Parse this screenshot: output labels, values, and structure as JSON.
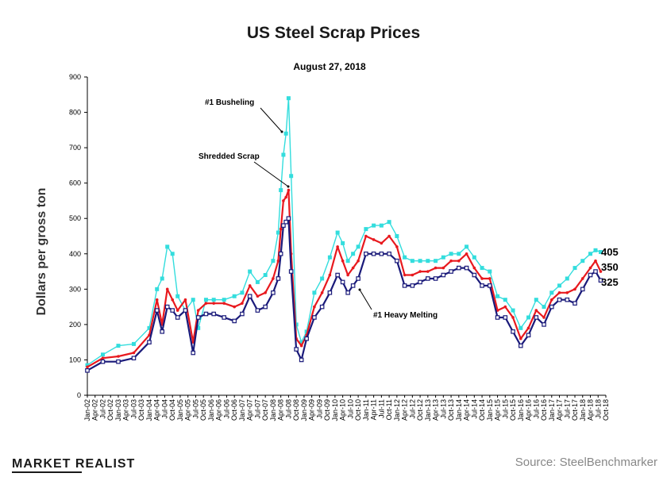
{
  "chart_data": {
    "type": "line",
    "title": "US Steel Scrap Prices",
    "subtitle": "August 27, 2018",
    "ylabel": "Dollars per gross ton",
    "ylim": [
      0,
      900
    ],
    "yticks": [
      0,
      100,
      200,
      300,
      400,
      500,
      600,
      700,
      800,
      900
    ],
    "xticks": [
      "Jan-02",
      "Apr-02",
      "Jul-02",
      "Oct-02",
      "Jan-03",
      "Apr-03",
      "Jul-03",
      "Oct-03",
      "Jan-04",
      "Apr-04",
      "Jul-04",
      "Oct-04",
      "Jan-05",
      "Apr-05",
      "Jul-05",
      "Oct-05",
      "Jan-06",
      "Apr-06",
      "Jul-06",
      "Oct-06",
      "Jan-07",
      "Apr-07",
      "Jul-07",
      "Oct-07",
      "Jan-08",
      "Apr-08",
      "Jul-08",
      "Oct-08",
      "Jan-09",
      "Apr-09",
      "Jul-09",
      "Oct-09",
      "Jan-10",
      "Apr-10",
      "Jul-10",
      "Oct-10",
      "Jan-11",
      "Apr-11",
      "Jul-11",
      "Oct-11",
      "Jan-12",
      "Apr-12",
      "Jul-12",
      "Oct-12",
      "Jan-13",
      "Apr-13",
      "Jul-13",
      "Oct-13",
      "Jan-14",
      "Apr-14",
      "Jul-14",
      "Oct-14",
      "Jan-15",
      "Apr-15",
      "Jul-15",
      "Oct-15",
      "Jan-16",
      "Apr-16",
      "Jul-16",
      "Oct-16",
      "Jan-17",
      "Apr-17",
      "Jul-17",
      "Oct-17",
      "Jan-18",
      "Apr-18",
      "Jul-18",
      "Oct-18"
    ],
    "series": [
      {
        "name": "#1 Busheling",
        "color": "#33dddd",
        "x": [
          "Jan-02",
          "Jul-02",
          "Jan-03",
          "Jul-03",
          "Jan-04",
          "Apr-04",
          "Jun-04",
          "Aug-04",
          "Oct-04",
          "Dec-04",
          "Mar-05",
          "Jun-05",
          "Aug-05",
          "Nov-05",
          "Feb-06",
          "Jun-06",
          "Oct-06",
          "Jan-07",
          "Apr-07",
          "Jul-07",
          "Oct-07",
          "Jan-08",
          "Mar-08",
          "Apr-08",
          "May-08",
          "Jun-08",
          "Jul-08",
          "Aug-08",
          "Oct-08",
          "Dec-08",
          "Feb-09",
          "May-09",
          "Aug-09",
          "Nov-09",
          "Feb-10",
          "Apr-10",
          "Jun-10",
          "Aug-10",
          "Oct-10",
          "Jan-11",
          "Apr-11",
          "Jul-11",
          "Oct-11",
          "Jan-12",
          "Apr-12",
          "Jul-12",
          "Oct-12",
          "Jan-13",
          "Apr-13",
          "Jul-13",
          "Oct-13",
          "Jan-14",
          "Apr-14",
          "Jul-14",
          "Oct-14",
          "Jan-15",
          "Apr-15",
          "Jul-15",
          "Oct-15",
          "Jan-16",
          "Apr-16",
          "Jul-16",
          "Oct-16",
          "Jan-17",
          "Apr-17",
          "Jul-17",
          "Oct-17",
          "Jan-18",
          "Apr-18",
          "Jun-18",
          "Aug-18"
        ],
        "values": [
          85,
          115,
          140,
          145,
          190,
          300,
          330,
          420,
          400,
          280,
          240,
          270,
          190,
          270,
          270,
          270,
          280,
          290,
          350,
          320,
          340,
          380,
          460,
          580,
          680,
          740,
          840,
          620,
          200,
          150,
          180,
          290,
          330,
          390,
          460,
          430,
          380,
          400,
          420,
          470,
          480,
          480,
          490,
          450,
          390,
          380,
          380,
          380,
          380,
          390,
          400,
          400,
          420,
          390,
          360,
          350,
          280,
          270,
          240,
          190,
          220,
          270,
          250,
          290,
          310,
          330,
          360,
          380,
          400,
          410,
          405
        ]
      },
      {
        "name": "Shredded Scrap",
        "color": "#e8191e",
        "x": [
          "Jan-02",
          "Jul-02",
          "Jan-03",
          "Jul-03",
          "Jan-04",
          "Apr-04",
          "Jun-04",
          "Aug-04",
          "Oct-04",
          "Dec-04",
          "Mar-05",
          "Jun-05",
          "Aug-05",
          "Nov-05",
          "Feb-06",
          "Jun-06",
          "Oct-06",
          "Jan-07",
          "Apr-07",
          "Jul-07",
          "Oct-07",
          "Jan-08",
          "Mar-08",
          "Apr-08",
          "May-08",
          "Jun-08",
          "Jul-08",
          "Aug-08",
          "Oct-08",
          "Dec-08",
          "Feb-09",
          "May-09",
          "Aug-09",
          "Nov-09",
          "Feb-10",
          "Apr-10",
          "Jun-10",
          "Aug-10",
          "Oct-10",
          "Jan-11",
          "Apr-11",
          "Jul-11",
          "Oct-11",
          "Jan-12",
          "Apr-12",
          "Jul-12",
          "Oct-12",
          "Jan-13",
          "Apr-13",
          "Jul-13",
          "Oct-13",
          "Jan-14",
          "Apr-14",
          "Jul-14",
          "Oct-14",
          "Jan-15",
          "Apr-15",
          "Jul-15",
          "Oct-15",
          "Jan-16",
          "Apr-16",
          "Jul-16",
          "Oct-16",
          "Jan-17",
          "Apr-17",
          "Jul-17",
          "Oct-17",
          "Jan-18",
          "Apr-18",
          "Jun-18",
          "Aug-18"
        ],
        "values": [
          80,
          105,
          110,
          120,
          170,
          270,
          200,
          300,
          270,
          240,
          270,
          150,
          240,
          260,
          260,
          260,
          250,
          260,
          310,
          280,
          290,
          330,
          380,
          470,
          550,
          560,
          580,
          400,
          160,
          140,
          170,
          250,
          290,
          340,
          420,
          380,
          340,
          360,
          380,
          450,
          440,
          430,
          450,
          420,
          340,
          340,
          350,
          350,
          360,
          360,
          380,
          380,
          400,
          360,
          330,
          330,
          240,
          250,
          220,
          160,
          190,
          240,
          220,
          270,
          290,
          290,
          300,
          330,
          360,
          380,
          350
        ]
      },
      {
        "name": "#1 Heavy Melting",
        "color": "#1a1a7a",
        "x": [
          "Jan-02",
          "Jul-02",
          "Jan-03",
          "Jul-03",
          "Jan-04",
          "Apr-04",
          "Jun-04",
          "Aug-04",
          "Oct-04",
          "Dec-04",
          "Mar-05",
          "Jun-05",
          "Aug-05",
          "Nov-05",
          "Feb-06",
          "Jun-06",
          "Oct-06",
          "Jan-07",
          "Apr-07",
          "Jul-07",
          "Oct-07",
          "Jan-08",
          "Mar-08",
          "Apr-08",
          "May-08",
          "Jun-08",
          "Jul-08",
          "Aug-08",
          "Oct-08",
          "Dec-08",
          "Feb-09",
          "May-09",
          "Aug-09",
          "Nov-09",
          "Feb-10",
          "Apr-10",
          "Jun-10",
          "Aug-10",
          "Oct-10",
          "Jan-11",
          "Apr-11",
          "Jul-11",
          "Oct-11",
          "Jan-12",
          "Apr-12",
          "Jul-12",
          "Oct-12",
          "Jan-13",
          "Apr-13",
          "Jul-13",
          "Oct-13",
          "Jan-14",
          "Apr-14",
          "Jul-14",
          "Oct-14",
          "Jan-15",
          "Apr-15",
          "Jul-15",
          "Oct-15",
          "Jan-16",
          "Apr-16",
          "Jul-16",
          "Oct-16",
          "Jan-17",
          "Apr-17",
          "Jul-17",
          "Oct-17",
          "Jan-18",
          "Apr-18",
          "Jun-18",
          "Aug-18"
        ],
        "values": [
          70,
          95,
          95,
          105,
          150,
          240,
          180,
          250,
          240,
          220,
          240,
          120,
          220,
          230,
          230,
          220,
          210,
          230,
          280,
          240,
          250,
          290,
          330,
          400,
          480,
          490,
          500,
          350,
          130,
          100,
          160,
          220,
          250,
          290,
          340,
          320,
          290,
          310,
          330,
          400,
          400,
          400,
          400,
          380,
          310,
          310,
          320,
          330,
          330,
          340,
          350,
          360,
          360,
          340,
          310,
          310,
          220,
          220,
          180,
          140,
          170,
          220,
          200,
          250,
          270,
          270,
          260,
          300,
          340,
          350,
          325
        ]
      }
    ],
    "annotations": [
      {
        "text": "#1 Busheling"
      },
      {
        "text": "Shredded Scrap"
      },
      {
        "text": "#1 Heavy Melting"
      }
    ],
    "end_labels": [
      "405",
      "350",
      "325"
    ],
    "grid": false,
    "legend": "none"
  },
  "footer": {
    "brand": "MARKET REALIST",
    "source": "Source:  SteelBenchmarker"
  }
}
